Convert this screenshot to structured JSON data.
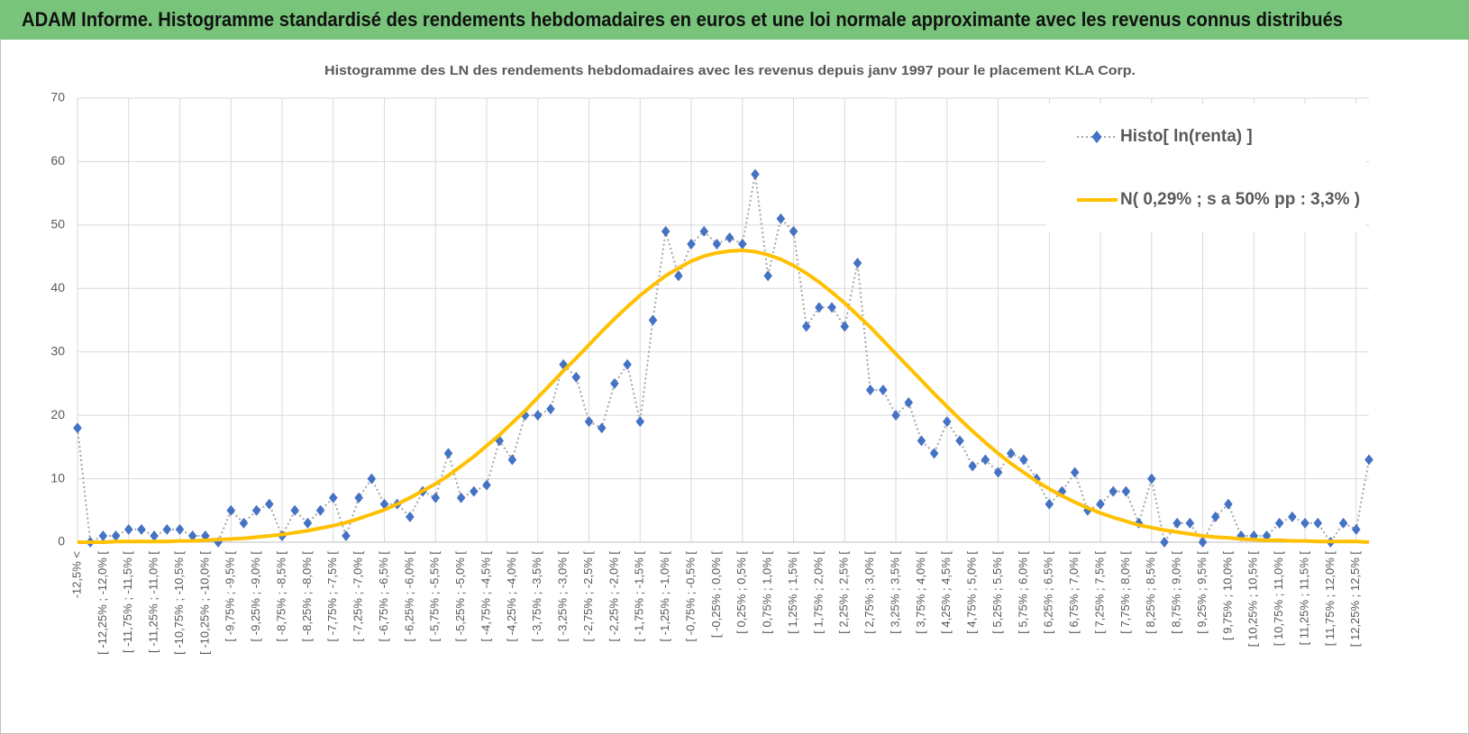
{
  "header": {
    "title": "ADAM Informe. Histogramme standardisé des rendements hebdomadaires en euros et une loi normale approximante avec les revenus connus distribués"
  },
  "chart_data": {
    "type": "line",
    "title": "Histogramme des LN des rendements hebdomadaires avec les revenus depuis janv 1997 pour le placement KLA Corp.",
    "categories": [
      "-12,5% <",
      null,
      "[ -12,25% ; -12,0% [",
      null,
      "[ -11,75% ; -11,5% [",
      null,
      "[ -11,25% ; -11,0% [",
      null,
      "[ -10,75% ; -10,5% [",
      null,
      "[ -10,25% ; -10,0% [",
      null,
      "[ -9,75% ; -9,5% [",
      null,
      "[ -9,25% ; -9,0% [",
      null,
      "[ -8,75% ; -8,5% [",
      null,
      "[ -8,25% ; -8,0% [",
      null,
      "[ -7,75% ; -7,5% [",
      null,
      "[ -7,25% ; -7,0% [",
      null,
      "[ -6,75% ; -6,5% [",
      null,
      "[ -6,25% ; -6,0% [",
      null,
      "[ -5,75% ; -5,5% [",
      null,
      "[ -5,25% ; -5,0% [",
      null,
      "[ -4,75% ; -4,5% [",
      null,
      "[ -4,25% ; -4,0% [",
      null,
      "[ -3,75% ; -3,5% [",
      null,
      "[ -3,25% ; -3,0% [",
      null,
      "[ -2,75% ; -2,5% [",
      null,
      "[ -2,25% ; -2,0% [",
      null,
      "[ -1,75% ; -1,5% [",
      null,
      "[ -1,25% ; -1,0% [",
      null,
      "[ -0,75% ; -0,5% [",
      null,
      "[ -0,25% ; 0,0% [",
      null,
      "[ 0,25% ; 0,5% [",
      null,
      "[ 0,75% ; 1,0% [",
      null,
      "[ 1,25% ; 1,5% [",
      null,
      "[ 1,75% ; 2,0% [",
      null,
      "[ 2,25% ; 2,5% [",
      null,
      "[ 2,75% ; 3,0% [",
      null,
      "[ 3,25% ; 3,5% [",
      null,
      "[ 3,75% ; 4,0% [",
      null,
      "[ 4,25% ; 4,5% [",
      null,
      "[ 4,75% ; 5,0% [",
      null,
      "[ 5,25% ; 5,5% [",
      null,
      "[ 5,75% ; 6,0% [",
      null,
      "[ 6,25% ; 6,5% [",
      null,
      "[ 6,75% ; 7,0% [",
      null,
      "[ 7,25% ; 7,5% [",
      null,
      "[ 7,75% ; 8,0% [",
      null,
      "[ 8,25% ; 8,5% [",
      null,
      "[ 8,75% ; 9,0% [",
      null,
      "[ 9,25% ; 9,5% [",
      null,
      "[ 9,75% ; 10,0% [",
      null,
      "[ 10,25% ; 10,5% [",
      null,
      "[ 10,75% ; 11,0% [",
      null,
      "[ 11,25% ; 11,5% [",
      null,
      "[ 11,75% ; 12,0% [",
      null,
      "[ 12,25% ; 12,5% [",
      null
    ],
    "series": [
      {
        "name": "Histo[ ln(renta) ]",
        "color": "#4472c4",
        "values": [
          18,
          0,
          1,
          1,
          2,
          2,
          1,
          2,
          2,
          1,
          1,
          0,
          5,
          3,
          5,
          6,
          1,
          5,
          3,
          5,
          7,
          1,
          7,
          10,
          6,
          6,
          4,
          8,
          7,
          14,
          7,
          8,
          9,
          16,
          13,
          20,
          20,
          21,
          28,
          26,
          19,
          18,
          25,
          28,
          19,
          35,
          49,
          42,
          47,
          49,
          47,
          48,
          47,
          58,
          42,
          51,
          49,
          34,
          37,
          37,
          34,
          44,
          24,
          24,
          20,
          22,
          16,
          14,
          19,
          16,
          12,
          13,
          11,
          14,
          13,
          10,
          6,
          8,
          11,
          5,
          6,
          8,
          8,
          3,
          10,
          0,
          3,
          3,
          0,
          4,
          6,
          1,
          1,
          1,
          3,
          4,
          3,
          3,
          0,
          3,
          2,
          13
        ]
      },
      {
        "name": "N( 0,29% ; s a 50% pp : 3,3% )",
        "color": "#ffc000",
        "values": [
          0.0,
          0.0,
          0.0,
          0.1,
          0.1,
          0.1,
          0.1,
          0.1,
          0.2,
          0.2,
          0.3,
          0.4,
          0.5,
          0.6,
          0.8,
          1.0,
          1.2,
          1.5,
          1.8,
          2.2,
          2.6,
          3.1,
          3.7,
          4.4,
          5.1,
          6.0,
          7.0,
          8.1,
          9.2,
          10.5,
          12.0,
          13.5,
          15.2,
          16.9,
          18.8,
          20.7,
          22.8,
          24.9,
          27.0,
          29.0,
          31.1,
          33.2,
          35.2,
          37.1,
          38.9,
          40.5,
          42.0,
          43.2,
          44.3,
          45.1,
          45.6,
          45.9,
          46.0,
          45.8,
          45.3,
          44.6,
          43.6,
          42.4,
          41.0,
          39.4,
          37.7,
          35.8,
          33.9,
          31.8,
          29.7,
          27.6,
          25.5,
          23.4,
          21.4,
          19.4,
          17.5,
          15.7,
          14.0,
          12.4,
          11.0,
          9.6,
          8.4,
          7.3,
          6.3,
          5.4,
          4.6,
          3.9,
          3.3,
          2.7,
          2.3,
          1.9,
          1.6,
          1.3,
          1.0,
          0.8,
          0.7,
          0.5,
          0.4,
          0.3,
          0.3,
          0.2,
          0.2,
          0.1,
          0.1,
          0.1,
          0.1,
          0.0
        ]
      }
    ],
    "ylim": [
      0,
      70
    ],
    "yticks": [
      0,
      10,
      20,
      30,
      40,
      50,
      60,
      70
    ],
    "grid": true,
    "legend": "upper right"
  }
}
